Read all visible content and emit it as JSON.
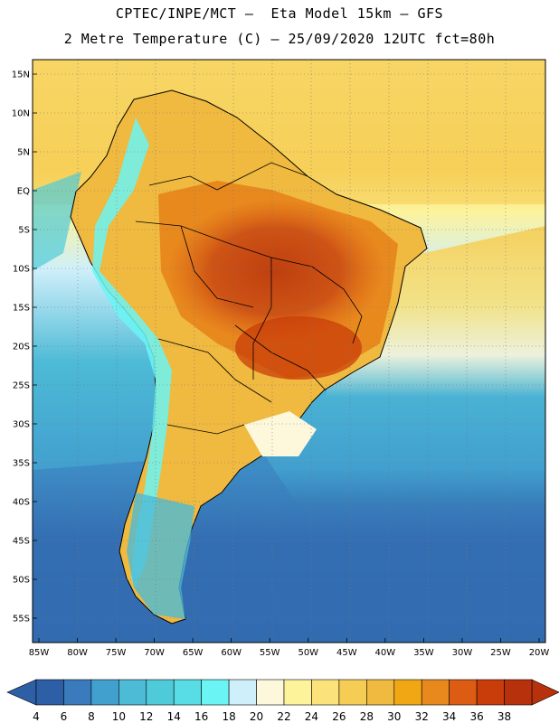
{
  "header": {
    "line1": "CPTEC/INPE/MCT –  Eta Model 15km – GFS",
    "line2": "2 Metre Temperature (C) – 25/09/2020 12UTC fct=80h"
  },
  "map": {
    "region": "South America",
    "variable": "2 Metre Temperature",
    "units": "C",
    "lon_range": [
      -85,
      -20
    ],
    "lat_range": [
      -58,
      16
    ],
    "lat_ticks": [
      {
        "value": 15,
        "label": "15N"
      },
      {
        "value": 10,
        "label": "10N"
      },
      {
        "value": 5,
        "label": "5N"
      },
      {
        "value": 0,
        "label": "EQ"
      },
      {
        "value": -5,
        "label": "5S"
      },
      {
        "value": -10,
        "label": "10S"
      },
      {
        "value": -15,
        "label": "15S"
      },
      {
        "value": -20,
        "label": "20S"
      },
      {
        "value": -25,
        "label": "25S"
      },
      {
        "value": -30,
        "label": "30S"
      },
      {
        "value": -35,
        "label": "35S"
      },
      {
        "value": -40,
        "label": "40S"
      },
      {
        "value": -45,
        "label": "45S"
      },
      {
        "value": -50,
        "label": "50S"
      },
      {
        "value": -55,
        "label": "55S"
      }
    ],
    "lon_ticks": [
      {
        "value": -85,
        "label": "85W"
      },
      {
        "value": -80,
        "label": "80W"
      },
      {
        "value": -75,
        "label": "75W"
      },
      {
        "value": -70,
        "label": "70W"
      },
      {
        "value": -65,
        "label": "65W"
      },
      {
        "value": -60,
        "label": "60W"
      },
      {
        "value": -55,
        "label": "55W"
      },
      {
        "value": -50,
        "label": "50W"
      },
      {
        "value": -45,
        "label": "45W"
      },
      {
        "value": -40,
        "label": "40W"
      },
      {
        "value": -35,
        "label": "35W"
      },
      {
        "value": -30,
        "label": "30W"
      },
      {
        "value": -25,
        "label": "25W"
      },
      {
        "value": -20,
        "label": "20W"
      }
    ]
  },
  "colorbar": {
    "levels": [
      "4",
      "6",
      "8",
      "10",
      "12",
      "14",
      "16",
      "18",
      "20",
      "22",
      "24",
      "26",
      "28",
      "30",
      "32",
      "34",
      "36",
      "38"
    ],
    "colors": [
      "#2d5fa6",
      "#3a7bbd",
      "#42a0cf",
      "#4dbad6",
      "#4fcad9",
      "#58dde6",
      "#6af4f4",
      "#cfeffa",
      "#fdf7dc",
      "#fdf39b",
      "#fbe27a",
      "#f5cc54",
      "#f0b93f",
      "#f1a714",
      "#e8891e",
      "#db5c12",
      "#c93d0a",
      "#b7320c"
    ]
  }
}
